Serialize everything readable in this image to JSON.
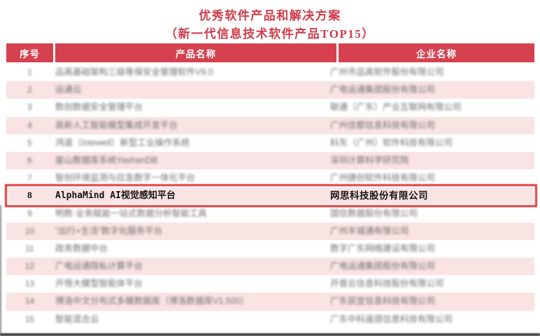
{
  "page": {
    "title_line1": "优秀软件产品和解决方案",
    "title_line2": "（新一代信息技术软件产品TOP15）"
  },
  "colors": {
    "title_red": "#cf3b49",
    "header_bg": "#d6414f",
    "stripe_pink": "#fae3e3",
    "highlight_border": "#e23b3b",
    "blurred_text": "#6f6f6f",
    "highlight_text": "#151515"
  },
  "table": {
    "headers": {
      "num": "序号",
      "product": "产品名称",
      "company": "企业名称"
    },
    "rows": [
      {
        "num": "1",
        "product": "品高基础架构三级等保安全管理软件V9.0",
        "company": "广州市品高软件股份有限公司",
        "blurred": true,
        "highlighted": false
      },
      {
        "num": "2",
        "product": "运通云",
        "company": "广电运通集团股份有限公司",
        "blurred": true,
        "highlighted": false
      },
      {
        "num": "3",
        "product": "数创数据安全管理平台",
        "company": "联通（广东）产业互联网有限公司",
        "blurred": true,
        "highlighted": false
      },
      {
        "num": "4",
        "product": "高新人工智能模型集成开发平台",
        "company": "广州佳都信息科技有限公司",
        "blurred": true,
        "highlighted": false
      },
      {
        "num": "5",
        "product": "鸿道（Intewell）新型工业操作系统",
        "company": "科东（广州）软件科技有限公司",
        "blurred": true,
        "highlighted": false
      },
      {
        "num": "6",
        "product": "崖山数据库系统YashanDB",
        "company": "深圳计算科学研究院",
        "blurred": true,
        "highlighted": false
      },
      {
        "num": "7",
        "product": "智创环境监测与应急数字一体化平台",
        "company": "广州捷创软件科技有限公司",
        "blurred": true,
        "highlighted": false
      },
      {
        "num": "8",
        "product": "AlphaMind AI视觉感知平台",
        "company": "网思科技股份有限公司",
        "blurred": false,
        "highlighted": true
      },
      {
        "num": "9",
        "product": "明数·业务赋能一站式数据分析智能工具",
        "company": "国信数据股份有限公司",
        "blurred": true,
        "highlighted": false
      },
      {
        "num": "10",
        "product": "“出行+生活”数字化服务平台",
        "company": "广州羊城通有限公司",
        "blurred": true,
        "highlighted": false
      },
      {
        "num": "11",
        "product": "政务数据中台",
        "company": "数字广东网络建设有限公司",
        "blurred": true,
        "highlighted": false
      },
      {
        "num": "12",
        "product": "广电运通隐私计算平台",
        "company": "广电运通集团股份有限公司",
        "blurred": true,
        "highlighted": false
      },
      {
        "num": "13",
        "product": "开悟大模型智能体平台",
        "company": "开普云信息科技股份有限公司",
        "blurred": true,
        "highlighted": false
      },
      {
        "num": "14",
        "product": "博洛中文分布式多模数据库（博洛数据库V1.500）",
        "company": "广东辰宜信息科技有限公司",
        "blurred": true,
        "highlighted": false
      },
      {
        "num": "15",
        "product": "智能混合云",
        "company": "广东中科遥感信息科技有限公司",
        "blurred": true,
        "highlighted": false
      }
    ]
  }
}
